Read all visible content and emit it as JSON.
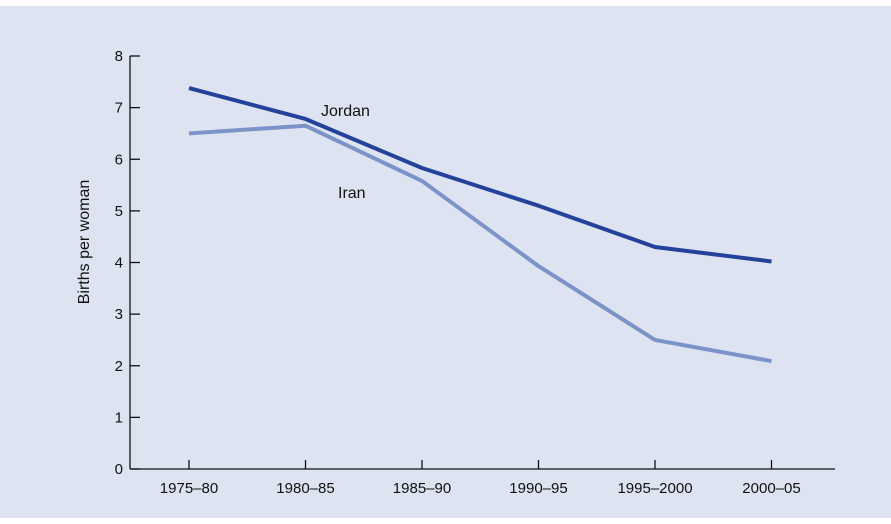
{
  "chart_data": {
    "type": "line",
    "title": "",
    "xlabel": "",
    "ylabel": "Births per woman",
    "ylim": [
      0,
      8
    ],
    "yticks": [
      "0",
      "1",
      "2",
      "3",
      "4",
      "5",
      "6",
      "7",
      "8"
    ],
    "categories": [
      "1975–80",
      "1980–85",
      "1985–90",
      "1990–95",
      "1995–2000",
      "2000–05"
    ],
    "series": [
      {
        "name": "Jordan",
        "color": "#23429a",
        "values": [
          7.38,
          6.78,
          5.83,
          5.1,
          4.3,
          4.02
        ]
      },
      {
        "name": "Iran",
        "color": "#7b93c8",
        "values": [
          6.5,
          6.65,
          5.58,
          3.93,
          2.5,
          2.09
        ]
      }
    ],
    "grid": false,
    "legend": "direct labels"
  },
  "colors": {
    "background": "#dde3f0",
    "axis": "#111111"
  }
}
